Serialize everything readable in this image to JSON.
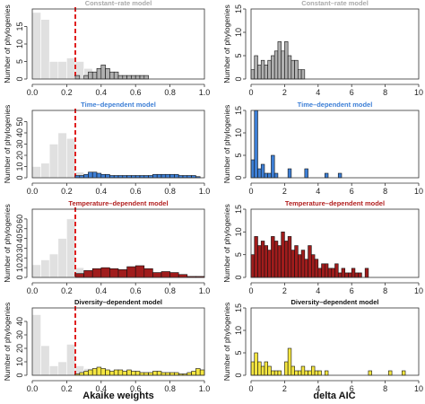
{
  "figure": {
    "xlabel_left": "Akaike weights",
    "xlabel_right": "delta AIC"
  },
  "chart_data": [
    {
      "type": "histogram",
      "panel": "left",
      "title": "Constant–rate model",
      "title_color": "#aaaaaa",
      "ylabel": "Number of phylogenies",
      "xlim": [
        0,
        1
      ],
      "ylim": [
        0,
        20
      ],
      "xticks": [
        0.0,
        0.2,
        0.4,
        0.6,
        0.8,
        1.0
      ],
      "yticks": [
        0,
        5,
        10,
        15
      ],
      "dashed_line_x": 0.25,
      "background_series": {
        "bin_width": 0.05,
        "start": 0,
        "color": "#e0e0e0",
        "values": [
          19,
          17,
          5,
          5,
          6,
          5,
          3,
          2,
          1,
          1,
          0,
          0,
          0,
          0,
          0,
          0,
          0,
          0,
          0,
          0
        ]
      },
      "foreground_series": {
        "bin_width": 0.025,
        "start": 0.25,
        "color": "#b0b0b0",
        "values": [
          1,
          0,
          1,
          2,
          2,
          3,
          4,
          3,
          2,
          2,
          1,
          1,
          1,
          1,
          1,
          1,
          1
        ]
      }
    },
    {
      "type": "histogram",
      "panel": "right",
      "title": "Constant–rate model",
      "title_color": "#aaaaaa",
      "ylabel": "Number of phylogenies",
      "xlim": [
        0,
        10
      ],
      "ylim": [
        0,
        15
      ],
      "xticks": [
        0,
        2,
        4,
        6,
        8,
        10
      ],
      "yticks": [
        0,
        5,
        10,
        15
      ],
      "series": {
        "bin_width": 0.2,
        "start": 0,
        "color": "#b0b0b0",
        "values": [
          2,
          5,
          3,
          4,
          3,
          4,
          5,
          6,
          8,
          6,
          8,
          5,
          4,
          4,
          2,
          2
        ]
      }
    },
    {
      "type": "histogram",
      "panel": "left",
      "title": "Time–dependent model",
      "title_color": "#3d7fd6",
      "ylabel": "Number of phylogenies",
      "xlim": [
        0,
        1
      ],
      "ylim": [
        0,
        60
      ],
      "xticks": [
        0.0,
        0.2,
        0.4,
        0.6,
        0.8,
        1.0
      ],
      "yticks": [
        0,
        10,
        20,
        30,
        40,
        50
      ],
      "dashed_line_x": 0.25,
      "background_series": {
        "bin_width": 0.05,
        "start": 0,
        "color": "#e0e0e0",
        "values": [
          10,
          13,
          30,
          40,
          35,
          5,
          3,
          2,
          1,
          1,
          0,
          0,
          0,
          0,
          0,
          0,
          0,
          0,
          0,
          0
        ]
      },
      "foreground_series": {
        "bin_width": 0.025,
        "start": 0.25,
        "color": "#3d7fd6",
        "values": [
          2,
          2,
          3,
          5,
          5,
          4,
          3,
          3,
          2,
          2,
          2,
          2,
          2,
          2,
          2,
          2,
          2,
          2,
          3,
          3,
          3,
          3,
          3,
          3,
          2,
          2,
          2,
          2,
          1
        ]
      }
    },
    {
      "type": "histogram",
      "panel": "right",
      "title": "Time–dependent model",
      "title_color": "#3d7fd6",
      "ylabel": "Number of phylogenies",
      "xlim": [
        0,
        10
      ],
      "ylim": [
        0,
        15
      ],
      "xticks": [
        0,
        2,
        4,
        6,
        8,
        10
      ],
      "yticks": [
        0,
        5,
        10,
        15
      ],
      "series": {
        "bin_width": 0.2,
        "start": 0,
        "color": "#3d7fd6",
        "values": [
          4,
          15,
          2,
          3,
          1,
          1,
          5,
          1,
          0,
          0,
          0,
          2,
          0,
          0,
          0,
          0,
          2,
          0,
          0,
          0,
          0,
          0,
          1,
          0,
          0,
          0,
          1
        ]
      }
    },
    {
      "type": "histogram",
      "panel": "left",
      "title": "Temperature–dependent model",
      "title_color": "#b21f1f",
      "ylabel": "Number of phylogenies",
      "xlim": [
        0,
        1
      ],
      "ylim": [
        0,
        70
      ],
      "xticks": [
        0.0,
        0.2,
        0.4,
        0.6,
        0.8,
        1.0
      ],
      "yticks": [
        0,
        10,
        20,
        30,
        40,
        50,
        60
      ],
      "dashed_line_x": 0.25,
      "background_series": {
        "bin_width": 0.05,
        "start": 0,
        "color": "#e0e0e0",
        "values": [
          13,
          18,
          24,
          40,
          60,
          10,
          8,
          5,
          3,
          2,
          1,
          1,
          0,
          0,
          0,
          0,
          0,
          0,
          0,
          0
        ]
      },
      "foreground_series": {
        "bin_width": 0.05,
        "start": 0.25,
        "color": "#a01c1c",
        "values": [
          4,
          7,
          9,
          10,
          9,
          8,
          11,
          12,
          9,
          5,
          6,
          5,
          3,
          1,
          1
        ]
      }
    },
    {
      "type": "histogram",
      "panel": "right",
      "title": "Temperature–dependent model",
      "title_color": "#b21f1f",
      "ylabel": "Number of phylogenies",
      "xlim": [
        0,
        10
      ],
      "ylim": [
        0,
        15
      ],
      "xticks": [
        0,
        2,
        4,
        6,
        8,
        10
      ],
      "yticks": [
        0,
        5,
        10,
        15
      ],
      "series": {
        "bin_width": 0.2,
        "start": 0,
        "color": "#a01c1c",
        "values": [
          5,
          9,
          7,
          8,
          7,
          6,
          9,
          8,
          7,
          10,
          8,
          9,
          6,
          7,
          5,
          6,
          4,
          7,
          5,
          4,
          2,
          3,
          3,
          2,
          2,
          3,
          1,
          2,
          1,
          1,
          2,
          1,
          1,
          0,
          2,
          0
        ]
      }
    },
    {
      "type": "histogram",
      "panel": "left",
      "title": "Diversity–dependent model",
      "title_color": "#111111",
      "ylabel": "Number of phylogenies",
      "xlim": [
        0,
        1
      ],
      "ylim": [
        0,
        50
      ],
      "xticks": [
        0.0,
        0.2,
        0.4,
        0.6,
        0.8,
        1.0
      ],
      "yticks": [
        0,
        10,
        20,
        30,
        40
      ],
      "dashed_line_x": 0.25,
      "background_series": {
        "bin_width": 0.05,
        "start": 0,
        "color": "#e0e0e0",
        "values": [
          45,
          22,
          7,
          10,
          23,
          7,
          5,
          3,
          2,
          1,
          0,
          0,
          0,
          0,
          0,
          0,
          0,
          0,
          0,
          0
        ]
      },
      "foreground_series": {
        "bin_width": 0.025,
        "start": 0.25,
        "color": "#f5e640",
        "values": [
          1,
          2,
          3,
          4,
          5,
          6,
          5,
          4,
          3,
          4,
          4,
          3,
          4,
          3,
          3,
          2,
          2,
          2,
          3,
          3,
          2,
          2,
          2,
          2,
          1,
          1,
          2,
          3,
          5,
          4
        ]
      }
    },
    {
      "type": "histogram",
      "panel": "right",
      "title": "Diversity–dependent model",
      "title_color": "#111111",
      "ylabel": "Number of phylogenies",
      "xlim": [
        0,
        10
      ],
      "ylim": [
        0,
        15
      ],
      "xticks": [
        0,
        2,
        4,
        6,
        8,
        10
      ],
      "yticks": [
        0,
        5,
        10,
        15
      ],
      "series": {
        "bin_width": 0.2,
        "start": 0,
        "color": "#f5e640",
        "values": [
          3,
          5,
          3,
          2,
          3,
          2,
          1,
          1,
          1,
          0,
          3,
          6,
          2,
          1,
          1,
          2,
          1,
          1,
          2,
          1,
          1,
          0,
          1,
          0,
          0,
          0,
          0,
          0,
          0,
          0,
          0,
          0,
          0,
          0,
          0,
          1,
          0,
          0,
          0,
          0,
          0,
          1,
          0,
          0,
          0,
          1
        ]
      }
    }
  ]
}
